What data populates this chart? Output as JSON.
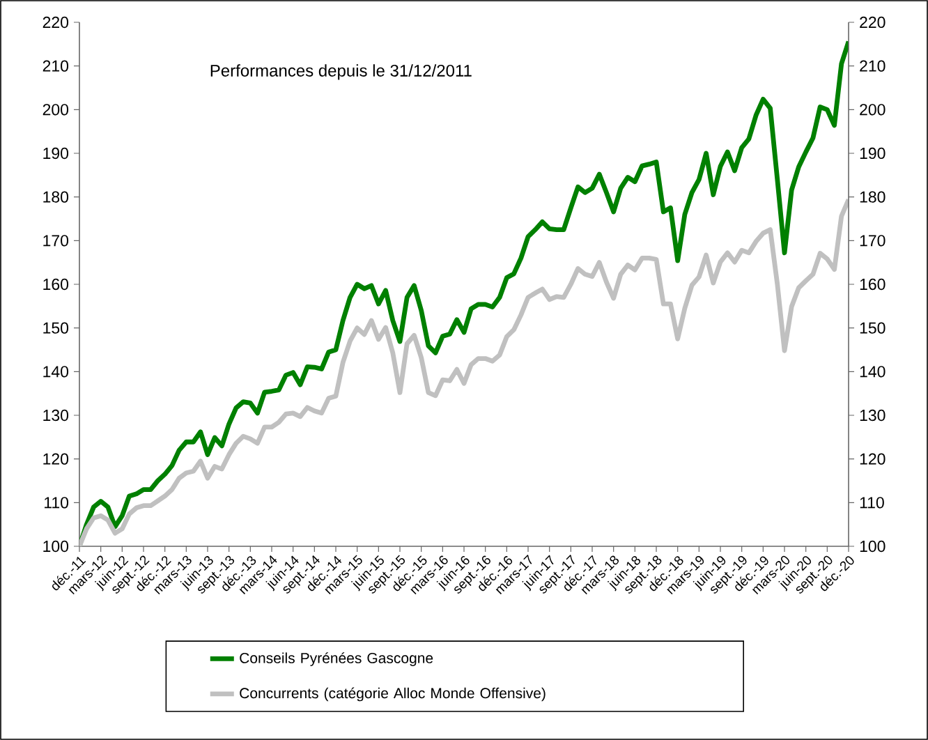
{
  "chart_data": {
    "type": "line",
    "title": "Performances depuis le 31/12/2011",
    "categories": [
      "déc.-11",
      null,
      null,
      "mars-12",
      null,
      null,
      "juin-12",
      null,
      null,
      "sept.-12",
      null,
      null,
      "déc.-12",
      null,
      null,
      "mars-13",
      null,
      null,
      "juin-13",
      null,
      null,
      "sept.-13",
      null,
      null,
      "déc.-13",
      null,
      null,
      "mars-14",
      null,
      null,
      "juin-14",
      null,
      null,
      "sept.-14",
      null,
      null,
      "déc.-14",
      null,
      null,
      "mars-15",
      null,
      null,
      "juin-15",
      null,
      null,
      "sept.-15",
      null,
      null,
      "déc.-15",
      null,
      null,
      "mars-16",
      null,
      null,
      "juin-16",
      null,
      null,
      "sept.-16",
      null,
      null,
      "déc.-16",
      null,
      null,
      "mars-17",
      null,
      null,
      "juin-17",
      null,
      null,
      "sept.-17",
      null,
      null,
      "déc.-17",
      null,
      null,
      "mars-18",
      null,
      null,
      "juin-18",
      null,
      null,
      "sept.-18",
      null,
      null,
      "déc.-18",
      null,
      null,
      "mars-19",
      null,
      null,
      "juin-19",
      null,
      null,
      "sept.-19",
      null,
      null,
      "déc.-19",
      null,
      null,
      "mars-20",
      null,
      null,
      "juin-20",
      null,
      null,
      "sept.-20",
      null,
      null,
      "déc.-20"
    ],
    "series": [
      {
        "name": "Conseils Pyrénées Gascogne",
        "color": "#008000",
        "values": [
          100,
          105,
          109,
          110.3,
          109,
          104.5,
          107,
          111.5,
          112,
          113,
          113,
          115,
          116.5,
          118.5,
          122,
          123.9,
          123.9,
          126.2,
          121,
          124.9,
          123,
          128,
          131.7,
          133.1,
          132.8,
          130.5,
          135.3,
          135.5,
          135.8,
          139.2,
          139.8,
          137,
          141.1,
          141,
          140.6,
          144.5,
          145,
          151.7,
          157,
          160,
          159,
          159.7,
          155.5,
          158.6,
          151.7,
          146.9,
          157,
          159.7,
          154,
          145.9,
          144.3,
          148.1,
          148.6,
          151.9,
          149,
          154.4,
          155.4,
          155.4,
          154.8,
          157,
          161.5,
          162.4,
          166,
          170.9,
          172.5,
          174.3,
          172.7,
          172.5,
          172.5,
          177.5,
          182.3,
          181,
          182,
          185.2,
          181,
          176.6,
          182,
          184.5,
          183.5,
          187.1,
          187.5,
          188,
          176.6,
          177.5,
          165.4,
          176,
          181,
          184,
          190,
          180.5,
          187,
          190.3,
          186,
          191.3,
          193.3,
          198.7,
          202.4,
          200.3,
          184,
          167.2,
          181.6,
          186.9,
          190.3,
          193.5,
          200.6,
          200,
          196.4,
          210.5,
          215.6
        ]
      },
      {
        "name": "Concurrents (catégorie Alloc Monde Offensive)",
        "color": "#c0c0c0",
        "values": [
          100,
          104,
          106.5,
          107,
          106,
          103,
          104,
          107.4,
          108.8,
          109.3,
          109.3,
          110.4,
          111.5,
          113,
          115.6,
          116.8,
          117.2,
          119.5,
          115.6,
          118.3,
          117.7,
          121,
          123.6,
          125.2,
          124.6,
          123.6,
          127.3,
          127.3,
          128.4,
          130.3,
          130.5,
          129.7,
          131.8,
          131,
          130.5,
          133.9,
          134.4,
          142.1,
          147,
          150,
          148.5,
          151.7,
          147.4,
          150.1,
          144.3,
          135.2,
          146.4,
          148.3,
          143.2,
          135.2,
          134.5,
          138.1,
          137.9,
          140.5,
          137.3,
          141.6,
          143,
          143,
          142.4,
          143.8,
          148,
          149.6,
          153,
          157,
          158,
          158.9,
          156.5,
          157.2,
          157,
          160,
          163.6,
          162.3,
          161.8,
          165,
          160.5,
          156.8,
          162.3,
          164.4,
          163.3,
          166,
          166,
          165.7,
          155.5,
          155.5,
          147.5,
          154.5,
          159.8,
          161.7,
          166.7,
          160.3,
          165.1,
          167.2,
          165.1,
          167.8,
          167.2,
          169.8,
          171.7,
          172.5,
          160,
          144.8,
          154.9,
          159.2,
          160.8,
          162.3,
          167.1,
          165.8,
          163.4,
          175.6,
          179.4
        ]
      }
    ],
    "ylim": [
      100,
      220
    ],
    "yticks": [
      100,
      110,
      120,
      130,
      140,
      150,
      160,
      170,
      180,
      190,
      200,
      210,
      220
    ],
    "y2lim": [
      100,
      220
    ],
    "y2ticks": [
      100,
      110,
      120,
      130,
      140,
      150,
      160,
      170,
      180,
      190,
      200,
      210,
      220
    ],
    "grid": false,
    "legend": "bottom"
  }
}
